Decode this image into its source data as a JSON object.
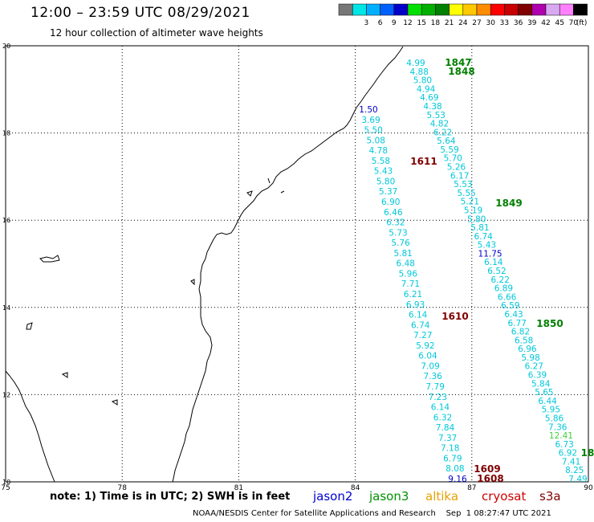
{
  "header": {
    "title": "12:00 – 23:59 UTC 08/29/2021",
    "subtitle": "12 hour collection of altimeter wave heights"
  },
  "legend": {
    "unit": "(ft)",
    "bins": [
      {
        "label": "",
        "color": "#777777"
      },
      {
        "label": "3",
        "color": "#00e5e5"
      },
      {
        "label": "6",
        "color": "#00b0ff"
      },
      {
        "label": "9",
        "color": "#0060ff"
      },
      {
        "label": "12",
        "color": "#0000c8"
      },
      {
        "label": "15",
        "color": "#00e000"
      },
      {
        "label": "18",
        "color": "#00b000"
      },
      {
        "label": "21",
        "color": "#008000"
      },
      {
        "label": "24",
        "color": "#ffff00"
      },
      {
        "label": "27",
        "color": "#ffc800"
      },
      {
        "label": "30",
        "color": "#ff8c00"
      },
      {
        "label": "33",
        "color": "#ff0000"
      },
      {
        "label": "36",
        "color": "#c80000"
      },
      {
        "label": "39",
        "color": "#800000"
      },
      {
        "label": "42",
        "color": "#b000b0"
      },
      {
        "label": "45",
        "color": "#d8a8f0"
      },
      {
        "label": "70",
        "color": "#ff80ff"
      },
      {
        "label": "",
        "color": "#000000"
      }
    ]
  },
  "axes": {
    "lon_ticks": [
      "75",
      "78",
      "81",
      "84",
      "87",
      "90"
    ],
    "lat_ticks": [
      "10",
      "12",
      "14",
      "16",
      "18",
      "20"
    ],
    "lon_range": [
      75,
      90
    ],
    "lat_range": [
      10,
      20
    ]
  },
  "colors": {
    "cyan": "#00c8d8",
    "blue": "#0000c8",
    "green": "#008000",
    "lime": "#40d040",
    "maroon": "#800000",
    "jason2": "#0000d0",
    "jason3": "#009000",
    "altika": "#e8a000",
    "cryosat": "#d00000",
    "s3a": "#800000"
  },
  "tracks": [
    {
      "id": "track-1611",
      "values": [
        {
          "text": "1.50",
          "color": "blue"
        },
        {
          "text": "3.69",
          "color": "cyan"
        },
        {
          "text": "5.50",
          "color": "cyan"
        },
        {
          "text": "5.08",
          "color": "cyan"
        },
        {
          "text": "4.78",
          "color": "cyan"
        },
        {
          "text": "5.58",
          "color": "cyan"
        },
        {
          "text": "5.43",
          "color": "cyan"
        },
        {
          "text": "5.80",
          "color": "cyan"
        },
        {
          "text": "5.37",
          "color": "cyan"
        },
        {
          "text": "6.90",
          "color": "cyan"
        },
        {
          "text": "6.46",
          "color": "cyan"
        },
        {
          "text": "6.32",
          "color": "cyan"
        },
        {
          "text": "5.73",
          "color": "cyan"
        },
        {
          "text": "5.76",
          "color": "cyan"
        },
        {
          "text": "5.81",
          "color": "cyan"
        },
        {
          "text": "6.48",
          "color": "cyan"
        },
        {
          "text": "5.96",
          "color": "cyan"
        },
        {
          "text": "7.71",
          "color": "cyan"
        },
        {
          "text": "6.21",
          "color": "cyan"
        },
        {
          "text": "6.93",
          "color": "cyan"
        },
        {
          "text": "6.14",
          "color": "cyan"
        },
        {
          "text": "6.74",
          "color": "cyan"
        },
        {
          "text": "7.27",
          "color": "cyan"
        },
        {
          "text": "5.92",
          "color": "cyan"
        },
        {
          "text": "6.04",
          "color": "cyan"
        },
        {
          "text": "7.09",
          "color": "cyan"
        },
        {
          "text": "7.36",
          "color": "cyan"
        },
        {
          "text": "7.79",
          "color": "cyan"
        },
        {
          "text": "7.23",
          "color": "cyan"
        },
        {
          "text": "6.14",
          "color": "cyan"
        },
        {
          "text": "6.32",
          "color": "cyan"
        },
        {
          "text": "7.84",
          "color": "cyan"
        },
        {
          "text": "7.37",
          "color": "cyan"
        },
        {
          "text": "7.18",
          "color": "cyan"
        },
        {
          "text": "6.79",
          "color": "cyan"
        },
        {
          "text": "8.08",
          "color": "cyan"
        },
        {
          "text": "9.16",
          "color": "blue"
        }
      ]
    },
    {
      "id": "track-1849",
      "values": [
        {
          "text": "4.99",
          "color": "cyan"
        },
        {
          "text": "4.88",
          "color": "cyan"
        },
        {
          "text": "5.80",
          "color": "cyan"
        },
        {
          "text": "4.94",
          "color": "cyan"
        },
        {
          "text": "4.69",
          "color": "cyan"
        },
        {
          "text": "4.38",
          "color": "cyan"
        },
        {
          "text": "5.53",
          "color": "cyan"
        },
        {
          "text": "4.82",
          "color": "cyan"
        },
        {
          "text": "6.22",
          "color": "cyan"
        },
        {
          "text": "5.64",
          "color": "cyan"
        },
        {
          "text": "5.59",
          "color": "cyan"
        },
        {
          "text": "5.70",
          "color": "cyan"
        },
        {
          "text": "5.26",
          "color": "cyan"
        },
        {
          "text": "6.17",
          "color": "cyan"
        },
        {
          "text": "5.53",
          "color": "cyan"
        },
        {
          "text": "5.55",
          "color": "cyan"
        },
        {
          "text": "5.21",
          "color": "cyan"
        },
        {
          "text": "5.19",
          "color": "cyan"
        },
        {
          "text": "5.80",
          "color": "cyan"
        },
        {
          "text": "5.81",
          "color": "cyan"
        },
        {
          "text": "6.74",
          "color": "cyan"
        },
        {
          "text": "5.43",
          "color": "cyan"
        },
        {
          "text": "11.75",
          "color": "blue"
        },
        {
          "text": "6.14",
          "color": "cyan"
        },
        {
          "text": "6.52",
          "color": "cyan"
        },
        {
          "text": "6.22",
          "color": "cyan"
        },
        {
          "text": "6.89",
          "color": "cyan"
        },
        {
          "text": "6.66",
          "color": "cyan"
        },
        {
          "text": "6.59",
          "color": "cyan"
        },
        {
          "text": "6.43",
          "color": "cyan"
        },
        {
          "text": "6.77",
          "color": "cyan"
        },
        {
          "text": "6.82",
          "color": "cyan"
        },
        {
          "text": "6.58",
          "color": "cyan"
        },
        {
          "text": "6.96",
          "color": "cyan"
        },
        {
          "text": "5.98",
          "color": "cyan"
        },
        {
          "text": "6.27",
          "color": "cyan"
        },
        {
          "text": "6.39",
          "color": "cyan"
        },
        {
          "text": "5.84",
          "color": "cyan"
        },
        {
          "text": "5.65",
          "color": "cyan"
        },
        {
          "text": "6.44",
          "color": "cyan"
        },
        {
          "text": "5.95",
          "color": "cyan"
        },
        {
          "text": "5.86",
          "color": "cyan"
        },
        {
          "text": "7.36",
          "color": "cyan"
        },
        {
          "text": "12.41",
          "color": "lime"
        },
        {
          "text": "6.73",
          "color": "cyan"
        },
        {
          "text": "6.92",
          "color": "cyan"
        },
        {
          "text": "7.41",
          "color": "cyan"
        },
        {
          "text": "8.25",
          "color": "cyan"
        },
        {
          "text": "7.49",
          "color": "cyan"
        }
      ]
    }
  ],
  "time_labels": [
    {
      "text": "1847",
      "color": "green"
    },
    {
      "text": "1848",
      "color": "green"
    },
    {
      "text": "1611",
      "color": "maroon"
    },
    {
      "text": "1849",
      "color": "green"
    },
    {
      "text": "1610",
      "color": "maroon"
    },
    {
      "text": "1850",
      "color": "green"
    },
    {
      "text": "18",
      "color": "green"
    },
    {
      "text": "1609",
      "color": "maroon"
    },
    {
      "text": "1608",
      "color": "maroon"
    }
  ],
  "footer": {
    "note": "note:  1) Time is in UTC;  2) SWH is in feet",
    "satellites": [
      "jason2",
      "jason3",
      "altika",
      "cryosat",
      "s3a"
    ],
    "credit": "NOAA/NESDIS Center for Satellite Applications and Research    Sep  1 08:27:47 UTC 2021"
  }
}
